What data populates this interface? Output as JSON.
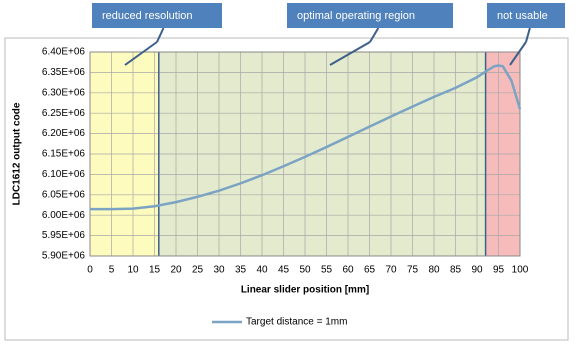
{
  "chart_data": {
    "type": "line",
    "x_label": "Linear slider position [mm]",
    "y_label": "LDC1612 output code",
    "x": [
      0,
      5,
      10,
      15,
      20,
      25,
      30,
      35,
      40,
      45,
      50,
      55,
      60,
      65,
      70,
      75,
      80,
      85,
      90,
      92,
      94,
      95,
      96,
      98,
      100
    ],
    "series": [
      {
        "name": "Target distance = 1mm",
        "color": "#7ba3c4",
        "values": [
          6015000,
          6015000,
          6016000,
          6022000,
          6032000,
          6045000,
          6060000,
          6078000,
          6098000,
          6120000,
          6143000,
          6167000,
          6192000,
          6217000,
          6242000,
          6266000,
          6290000,
          6312000,
          6338000,
          6352000,
          6365000,
          6367000,
          6365000,
          6330000,
          6260000
        ]
      }
    ],
    "xlim": [
      0,
      100
    ],
    "xticks": [
      0,
      5,
      10,
      15,
      20,
      25,
      30,
      35,
      40,
      45,
      50,
      55,
      60,
      65,
      70,
      75,
      80,
      85,
      90,
      95,
      100
    ],
    "ylim": [
      5900000,
      6400000
    ],
    "yticks": [
      {
        "value": 5900000,
        "label": "5.90E+06"
      },
      {
        "value": 5950000,
        "label": "5.95E+06"
      },
      {
        "value": 6000000,
        "label": "6.00E+06"
      },
      {
        "value": 6050000,
        "label": "6.05E+06"
      },
      {
        "value": 6100000,
        "label": "6.10E+06"
      },
      {
        "value": 6150000,
        "label": "6.15E+06"
      },
      {
        "value": 6200000,
        "label": "6.20E+06"
      },
      {
        "value": 6250000,
        "label": "6.25E+06"
      },
      {
        "value": 6300000,
        "label": "6.30E+06"
      },
      {
        "value": 6350000,
        "label": "6.35E+06"
      },
      {
        "value": 6400000,
        "label": "6.40E+06"
      }
    ],
    "grid": true,
    "regions": [
      {
        "label": "reduced resolution",
        "x0": 0,
        "x1": 16,
        "color": "#fdfbbd"
      },
      {
        "label": "optimal operating region",
        "x0": 16,
        "x1": 92,
        "color": "#e3eacd"
      },
      {
        "label": "not usable",
        "x0": 92,
        "x1": 100,
        "color": "#f6bcbb"
      }
    ]
  }
}
